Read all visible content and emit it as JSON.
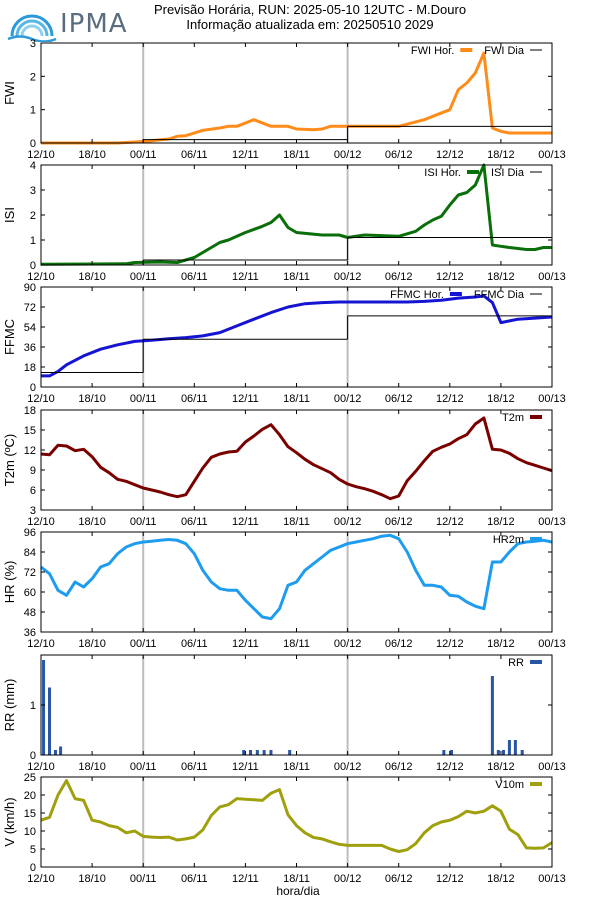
{
  "header": {
    "line1": "Previsão Horária, RUN: 2025-05-10 12UTC - M.Douro",
    "line2": "Informação atualizada em: 20250510 2029"
  },
  "logo": {
    "text": "IPMA"
  },
  "xaxis": {
    "label": "hora/dia",
    "ticks": [
      "12/10",
      "18/10",
      "00/11",
      "06/11",
      "12/11",
      "18/11",
      "00/12",
      "06/12",
      "12/12",
      "18/12",
      "00/13"
    ],
    "vlines_at": [
      "00/11",
      "00/12"
    ],
    "vline_color": "#bdbdbd"
  },
  "chart_data": [
    {
      "type": "line",
      "ylabel": "FWI",
      "ylim": [
        0,
        3
      ],
      "yticks": [
        "0",
        "1",
        "2",
        "3"
      ],
      "legend_placement": "top-right",
      "series": [
        {
          "name": "FWI Hor.",
          "color": "#ff8c1a",
          "style": "thick",
          "x": [
            0,
            9,
            11,
            13,
            14,
            15,
            16,
            17,
            19,
            21,
            22,
            23,
            24,
            25,
            27,
            28,
            29,
            30,
            32,
            33,
            34,
            35,
            36,
            37,
            38,
            39,
            42,
            45,
            48,
            49,
            50,
            51,
            52,
            53,
            54,
            55,
            57,
            60
          ],
          "y": [
            0,
            0,
            0.03,
            0.07,
            0.1,
            0.12,
            0.2,
            0.22,
            0.38,
            0.45,
            0.5,
            0.5,
            0.6,
            0.7,
            0.5,
            0.5,
            0.5,
            0.42,
            0.4,
            0.42,
            0.5,
            0.5,
            0.5,
            0.5,
            0.5,
            0.5,
            0.5,
            0.7,
            1.0,
            1.6,
            1.8,
            2.1,
            2.7,
            0.45,
            0.35,
            0.3,
            0.3,
            0.3
          ]
        },
        {
          "name": "FWI Dia",
          "color": "#000000",
          "style": "thin-step",
          "steps": [
            [
              0,
              12,
              0
            ],
            [
              12,
              36,
              0.1
            ],
            [
              36,
              60,
              0.5
            ]
          ]
        }
      ]
    },
    {
      "type": "line",
      "ylabel": "ISI",
      "ylim": [
        0,
        4
      ],
      "yticks": [
        "0",
        "1",
        "2",
        "3",
        "4"
      ],
      "legend_placement": "top-right",
      "series": [
        {
          "name": "ISI Hor.",
          "color": "#0a6e0a",
          "style": "thick",
          "x": [
            0,
            6,
            10,
            11,
            14,
            16,
            17,
            18,
            19,
            21,
            22,
            24,
            26,
            27,
            28,
            29,
            30,
            33,
            35,
            36,
            38,
            42,
            44,
            45,
            46,
            47,
            48,
            49,
            50,
            51,
            52,
            53,
            54,
            55,
            57,
            58,
            59,
            60
          ],
          "y": [
            0.03,
            0.04,
            0.05,
            0.1,
            0.12,
            0.1,
            0.2,
            0.3,
            0.5,
            0.9,
            1.0,
            1.3,
            1.55,
            1.7,
            2.0,
            1.5,
            1.3,
            1.2,
            1.2,
            1.1,
            1.2,
            1.15,
            1.35,
            1.6,
            1.8,
            1.95,
            2.4,
            2.8,
            2.9,
            3.2,
            4.0,
            0.8,
            0.75,
            0.7,
            0.62,
            0.62,
            0.7,
            0.7
          ]
        },
        {
          "name": "ISI Dia",
          "color": "#000000",
          "style": "thin-step",
          "steps": [
            [
              0,
              12,
              0
            ],
            [
              12,
              36,
              0.2
            ],
            [
              36,
              60,
              1.1
            ]
          ]
        }
      ]
    },
    {
      "type": "line",
      "ylabel": "FFMC",
      "ylim": [
        0,
        90
      ],
      "yticks": [
        "0",
        "18",
        "36",
        "54",
        "72",
        "90"
      ],
      "legend_placement": "top-right",
      "series": [
        {
          "name": "FFMC Hor.",
          "color": "#1414d2",
          "style": "thick",
          "x": [
            0,
            1,
            2,
            3,
            5,
            7,
            9,
            11,
            13,
            15,
            17,
            19,
            21,
            23,
            25,
            27,
            29,
            31,
            33,
            35,
            37,
            39,
            41,
            43,
            45,
            47,
            49,
            51,
            52,
            53,
            54,
            56,
            58,
            60
          ],
          "y": [
            10,
            10,
            14,
            20,
            28,
            34,
            38,
            41,
            42,
            43.5,
            44.5,
            46,
            49,
            55,
            61,
            67,
            72,
            75,
            76,
            76.5,
            76.5,
            76.5,
            76.5,
            76.5,
            77,
            78,
            80,
            81,
            82,
            76,
            58,
            61,
            62,
            63
          ]
        },
        {
          "name": "FFMC Dia",
          "color": "#000000",
          "style": "thin-step",
          "steps": [
            [
              0,
              12,
              13
            ],
            [
              12,
              36,
              43
            ],
            [
              36,
              60,
              64
            ]
          ]
        }
      ]
    },
    {
      "type": "line",
      "ylabel": "T2m (ºC)",
      "ylim": [
        3,
        18
      ],
      "yticks": [
        "3",
        "6",
        "9",
        "12",
        "15",
        "18"
      ],
      "legend_placement": "top-right",
      "series": [
        {
          "name": "T2m",
          "color": "#7a0000",
          "style": "thick",
          "x": [
            0,
            1,
            2,
            3,
            4,
            5,
            6,
            7,
            8,
            9,
            10,
            11,
            12,
            13,
            14,
            15,
            16,
            17,
            18,
            19,
            20,
            21,
            22,
            23,
            24,
            25,
            26,
            27,
            28,
            29,
            30,
            31,
            32,
            33,
            34,
            35,
            36,
            37,
            38,
            39,
            40,
            41,
            42,
            43,
            44,
            45,
            46,
            47,
            48,
            49,
            50,
            51,
            52,
            53,
            54,
            55,
            56,
            57,
            58,
            59,
            60
          ],
          "y": [
            11.4,
            11.3,
            12.7,
            12.6,
            11.9,
            12.1,
            11.0,
            9.4,
            8.6,
            7.6,
            7.3,
            6.8,
            6.3,
            6.0,
            5.7,
            5.3,
            5.0,
            5.3,
            7.3,
            9.3,
            10.9,
            11.4,
            11.7,
            11.8,
            13.2,
            14.1,
            15.1,
            15.8,
            14.3,
            12.5,
            11.6,
            10.6,
            9.8,
            9.2,
            8.6,
            7.6,
            6.9,
            6.5,
            6.2,
            5.8,
            5.3,
            4.7,
            5.1,
            7.4,
            8.8,
            10.4,
            11.8,
            12.4,
            12.9,
            13.7,
            14.3,
            15.9,
            16.8,
            12.1,
            12.0,
            11.5,
            10.7,
            10.1,
            9.7,
            9.3,
            8.9
          ]
        }
      ]
    },
    {
      "type": "line",
      "ylabel": "HR (%)",
      "ylim": [
        36,
        96
      ],
      "yticks": [
        "36",
        "48",
        "60",
        "72",
        "84",
        "96"
      ],
      "legend_placement": "top-right",
      "series": [
        {
          "name": "HR2m",
          "color": "#1e9cf0",
          "style": "thick",
          "x": [
            0,
            1,
            2,
            3,
            4,
            5,
            6,
            7,
            8,
            9,
            10,
            11,
            12,
            13,
            14,
            15,
            16,
            17,
            18,
            19,
            20,
            21,
            22,
            23,
            24,
            25,
            26,
            27,
            28,
            29,
            30,
            31,
            32,
            33,
            34,
            35,
            36,
            37,
            38,
            39,
            40,
            41,
            42,
            43,
            44,
            45,
            46,
            47,
            48,
            49,
            50,
            51,
            52,
            53,
            54,
            55,
            56,
            57,
            58,
            59,
            60
          ],
          "y": [
            75,
            71,
            61,
            58,
            66,
            63,
            68,
            75,
            77,
            83,
            87,
            89,
            90,
            90.5,
            91,
            91.5,
            91,
            89,
            83,
            73,
            66,
            62,
            61,
            61,
            55,
            50,
            45,
            44,
            50,
            64,
            66,
            73,
            77,
            81,
            85,
            87,
            89,
            90,
            91,
            92,
            93.5,
            94,
            92,
            84,
            73,
            64,
            64,
            63,
            58,
            57.5,
            54,
            51.5,
            50,
            78,
            78,
            84,
            89,
            90,
            90.5,
            91,
            90
          ]
        }
      ]
    },
    {
      "type": "bar",
      "ylabel": "RR (mm)",
      "ylim": [
        0,
        2
      ],
      "yticks": [
        "0",
        "1",
        ""
      ],
      "legend_placement": "top-right",
      "series": [
        {
          "name": "RR",
          "color": "#2855a5",
          "x": [
            0.3,
            1.0,
            1.7,
            2.3,
            23.8,
            24.6,
            25.4,
            26.2,
            27.0,
            29.2,
            47.3,
            48.2,
            53.0,
            53.7,
            54.3,
            55.0,
            55.7,
            56.5
          ],
          "y": [
            1.9,
            1.35,
            0.1,
            0.17,
            0.1,
            0.1,
            0.1,
            0.1,
            0.1,
            0.1,
            0.1,
            0.1,
            1.58,
            0.1,
            0.1,
            0.3,
            0.3,
            0.1
          ]
        }
      ]
    },
    {
      "type": "line",
      "ylabel": "V (km/h)",
      "ylim": [
        0,
        25
      ],
      "yticks": [
        "0",
        "5",
        "10",
        "15",
        "20",
        "25"
      ],
      "legend_placement": "top-right",
      "series": [
        {
          "name": "V10m",
          "color": "#a0a00f",
          "style": "thick",
          "x": [
            0,
            1,
            2,
            3,
            4,
            5,
            6,
            7,
            8,
            9,
            10,
            11,
            12,
            13,
            14,
            15,
            16,
            17,
            18,
            19,
            20,
            21,
            22,
            23,
            24,
            25,
            26,
            27,
            28,
            29,
            30,
            31,
            32,
            33,
            34,
            35,
            36,
            37,
            38,
            39,
            40,
            41,
            42,
            43,
            44,
            45,
            46,
            47,
            48,
            49,
            50,
            51,
            52,
            53,
            54,
            55,
            56,
            57,
            58,
            59,
            60
          ],
          "y": [
            13,
            13.8,
            20,
            24,
            19,
            18.5,
            13,
            12.5,
            11.5,
            11,
            9.5,
            10,
            8.5,
            8.3,
            8.2,
            8.3,
            7.5,
            7.8,
            8.3,
            10.3,
            14.3,
            16.7,
            17.3,
            19,
            18.8,
            18.7,
            18.5,
            20.5,
            21.5,
            14.5,
            11.5,
            9.5,
            8.2,
            7.8,
            7,
            6.3,
            6,
            6,
            6,
            6,
            6,
            5,
            4.3,
            4.8,
            6.5,
            9.5,
            11.5,
            12.5,
            13,
            14,
            15.5,
            15,
            15.5,
            17,
            15.5,
            10.5,
            9,
            5.3,
            5.2,
            5.3,
            6.8
          ]
        }
      ]
    }
  ]
}
